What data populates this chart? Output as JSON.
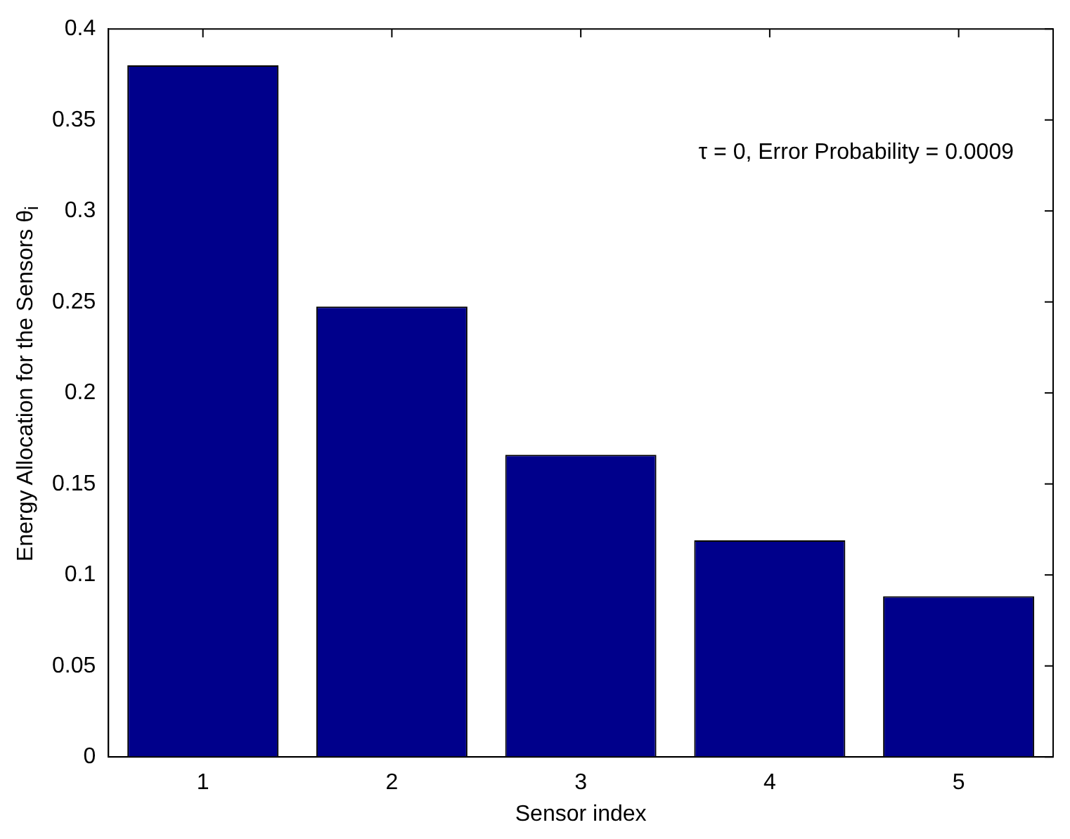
{
  "chart_data": {
    "type": "bar",
    "xlabel": "Sensor index",
    "ylabel": "Energy Allocation for the Sensors θ$_{i}$",
    "annotations": [
      "τ = 0, Error Probability = 0.0009"
    ],
    "categories": [
      "1",
      "2",
      "3",
      "4",
      "5"
    ],
    "values": [
      0.38,
      0.2475,
      0.166,
      0.119,
      0.0883
    ],
    "color": "#00008b",
    "ylim": [
      0,
      0.4
    ],
    "yticks": [
      0,
      0.05,
      0.1,
      0.15,
      0.2,
      0.25,
      0.3,
      0.35,
      0.4
    ],
    "grid": false,
    "legend": false
  }
}
